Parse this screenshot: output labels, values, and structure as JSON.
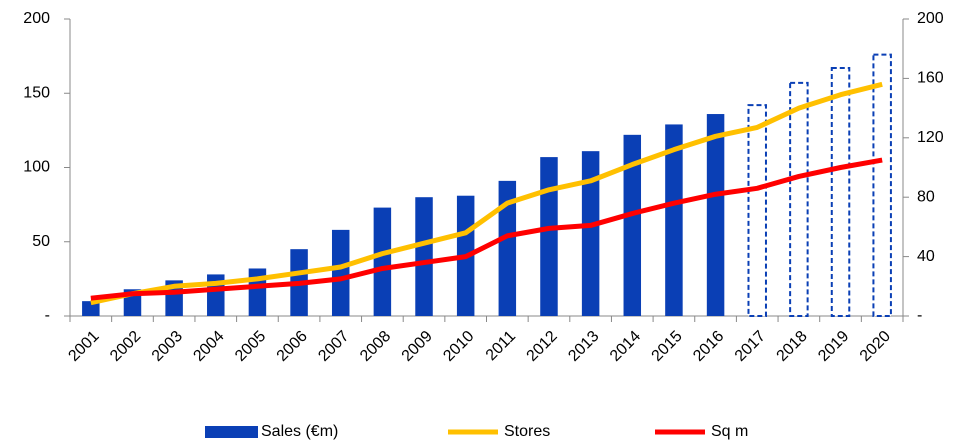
{
  "chart_data": {
    "type": "bar_line",
    "categories": [
      "2001",
      "2002",
      "2003",
      "2004",
      "2005",
      "2006",
      "2007",
      "2008",
      "2009",
      "2010",
      "2011",
      "2012",
      "2013",
      "2014",
      "2015",
      "2016",
      "2017",
      "2018",
      "2019",
      "2020"
    ],
    "series": [
      {
        "name": "Sales (€m)",
        "type": "bar",
        "color": "#0a3fb5",
        "axis": "y",
        "values": [
          10,
          18,
          24,
          28,
          32,
          45,
          58,
          73,
          80,
          81,
          91,
          107,
          111,
          122,
          129,
          136,
          142,
          157,
          167,
          176
        ],
        "bar_style": [
          "solid",
          "solid",
          "solid",
          "solid",
          "solid",
          "solid",
          "solid",
          "solid",
          "solid",
          "solid",
          "solid",
          "solid",
          "solid",
          "solid",
          "solid",
          "solid",
          "dashed",
          "dashed",
          "dashed",
          "dashed"
        ]
      },
      {
        "name": "Stores",
        "type": "line",
        "color": "#ffc000",
        "axis": "y2",
        "values": [
          9,
          15,
          20,
          22,
          25,
          29,
          33,
          42,
          49,
          56,
          76,
          85,
          91,
          102,
          112,
          121,
          127,
          140,
          149,
          156
        ]
      },
      {
        "name": "Sq m",
        "type": "line",
        "color": "#ff0000",
        "axis": "y2",
        "values": [
          12,
          15,
          16,
          18,
          20,
          22,
          25,
          32,
          36,
          40,
          54,
          59,
          61,
          69,
          76,
          82,
          86,
          94,
          100,
          105
        ]
      }
    ],
    "ylim": [
      0,
      200
    ],
    "yticks": [
      {
        "value": 0,
        "label": "-"
      },
      50,
      100,
      150,
      200
    ],
    "y2lim": [
      0,
      200
    ],
    "y2ticks": [
      {
        "value": 0,
        "label": "-"
      },
      40,
      80,
      120,
      160,
      200
    ],
    "legend": "bottom"
  }
}
